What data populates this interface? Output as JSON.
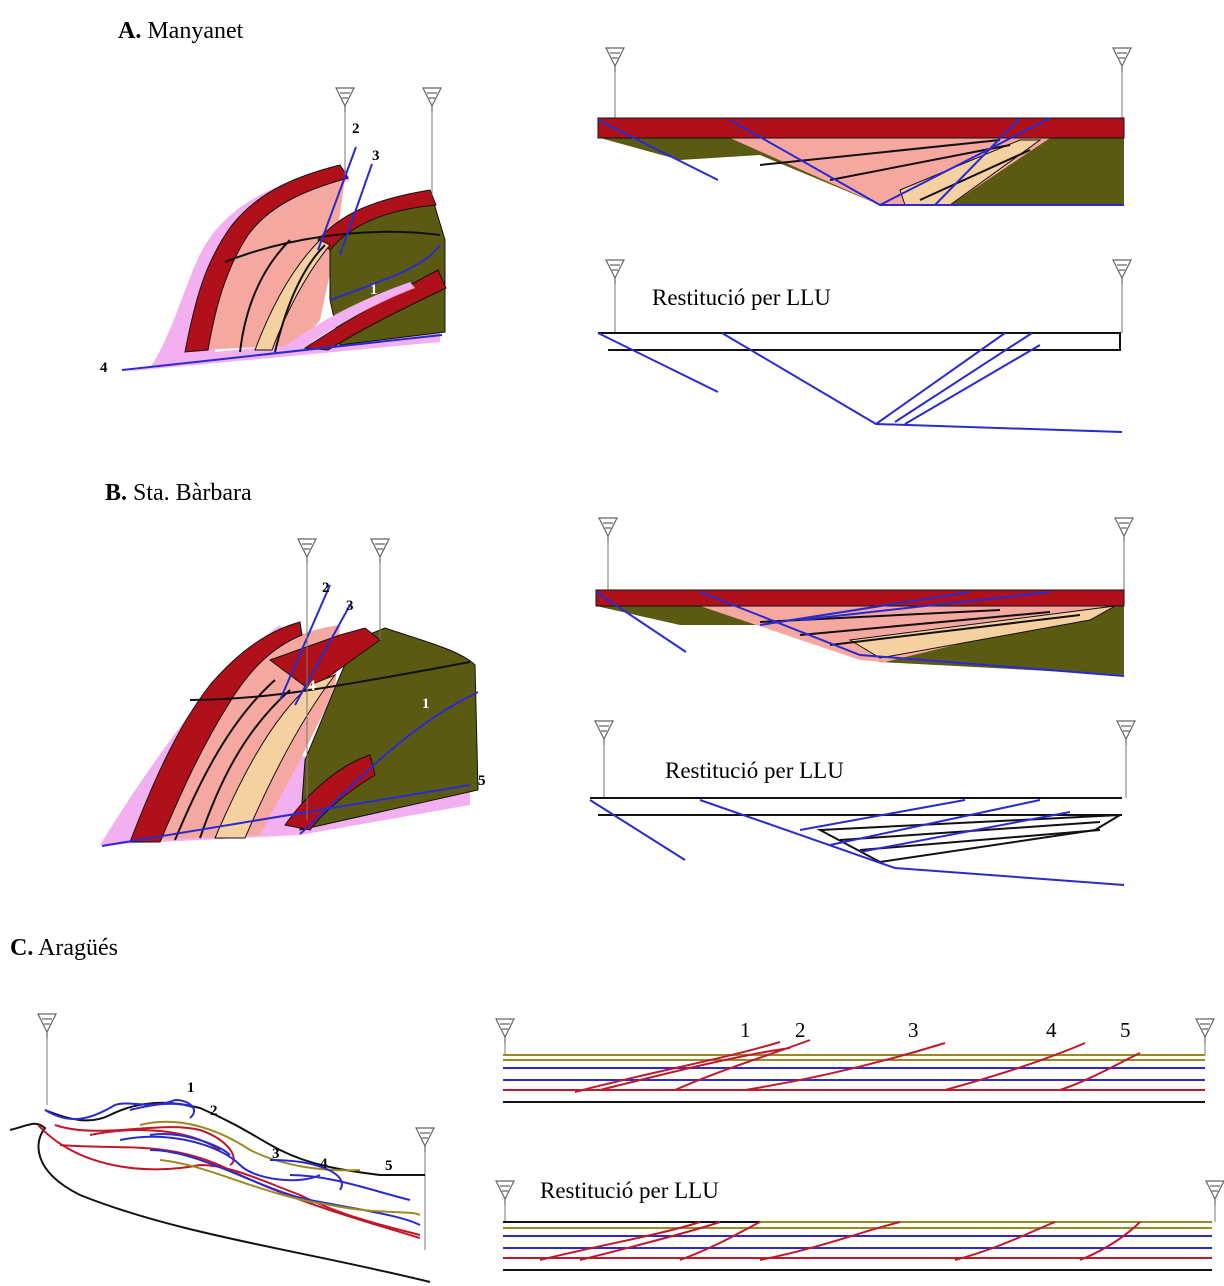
{
  "panels": [
    {
      "letter": "A.",
      "name": "Manyanet",
      "section_labels": [
        "2",
        "3",
        "1",
        "4"
      ],
      "restoration_label": "Restitució per LLU"
    },
    {
      "letter": "B.",
      "name": "Sta. Bàrbara",
      "section_labels": [
        "2",
        "3",
        "4",
        "1",
        "5"
      ],
      "restoration_label": "Restitució per LLU"
    },
    {
      "letter": "C.",
      "name": "Aragüés",
      "section_labels": [
        "1",
        "2",
        "3",
        "4",
        "5"
      ],
      "model_labels": [
        "1",
        "2",
        "3",
        "4",
        "5"
      ],
      "restoration_label": "Restitució per LLU"
    }
  ]
}
